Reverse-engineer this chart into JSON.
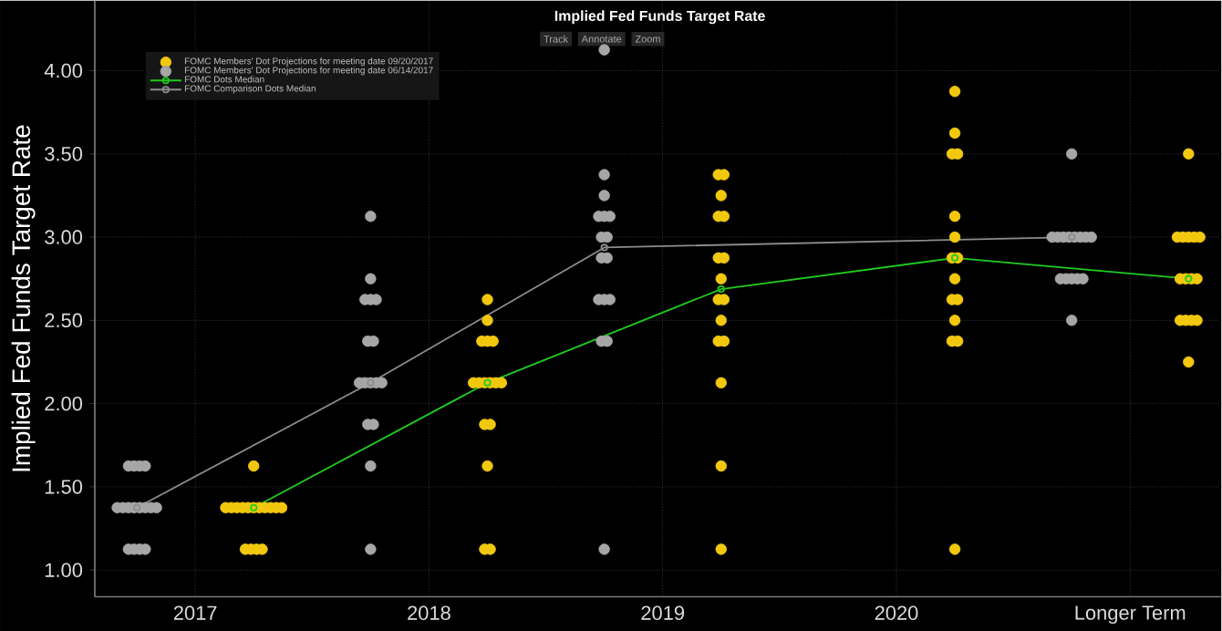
{
  "chart_data": {
    "type": "scatter",
    "title": "Implied Fed Funds Target Rate",
    "ylabel": "Implied Fed Funds Target Rate",
    "annotations": [
      "Track",
      "Annotate",
      "Zoom"
    ],
    "xlim": [
      2016.57,
      2021.39
    ],
    "ylim": [
      0.84,
      4.42
    ],
    "xticks": [
      2017,
      2018,
      2019,
      2020,
      {
        "value": 2021,
        "label": "Longer Term"
      }
    ],
    "yticks": [
      {
        "value": 1,
        "label": "1.00"
      },
      {
        "value": 1.5,
        "label": "1.50"
      },
      {
        "value": 2,
        "label": "2.00"
      },
      {
        "value": 2.5,
        "label": "2.50"
      },
      {
        "value": 3,
        "label": "3.00"
      },
      {
        "value": 3.5,
        "label": "3.50"
      },
      {
        "value": 4,
        "label": "4.00"
      }
    ],
    "grid": true,
    "legend": "top left",
    "marker": "circle",
    "series": [
      {
        "name": "FOMC Members' Dot Projections for meeting date 09/20/2017",
        "color": "#f2c80f",
        "x": [
          2017.25,
          2017.13,
          2017.154,
          2017.178,
          2017.202,
          2017.226,
          2017.25,
          2017.274,
          2017.298,
          2017.322,
          2017.346,
          2017.37,
          2017.214,
          2017.238,
          2017.262,
          2017.286,
          2018.25,
          2018.25,
          2018.226,
          2018.25,
          2018.274,
          2018.19,
          2018.214,
          2018.238,
          2018.262,
          2018.286,
          2018.31,
          2018.238,
          2018.262,
          2018.25,
          2018.238,
          2018.262,
          2019.238,
          2019.262,
          2019.25,
          2019.238,
          2019.262,
          2019.238,
          2019.262,
          2019.25,
          2019.238,
          2019.262,
          2019.25,
          2019.238,
          2019.262,
          2019.25,
          2019.25,
          2019.25,
          2020.25,
          2020.25,
          2020.238,
          2020.262,
          2020.25,
          2020.25,
          2020.238,
          2020.262,
          2020.25,
          2020.238,
          2020.262,
          2020.25,
          2020.238,
          2020.262,
          2020.25,
          2021.25,
          2021.202,
          2021.226,
          2021.25,
          2021.274,
          2021.298,
          2021.214,
          2021.238,
          2021.262,
          2021.286,
          2021.214,
          2021.238,
          2021.262,
          2021.286,
          2021.25
        ],
        "values": [
          1.625,
          1.375,
          1.375,
          1.375,
          1.375,
          1.375,
          1.375,
          1.375,
          1.375,
          1.375,
          1.375,
          1.375,
          1.125,
          1.125,
          1.125,
          1.125,
          2.625,
          2.5,
          2.375,
          2.375,
          2.375,
          2.125,
          2.125,
          2.125,
          2.125,
          2.125,
          2.125,
          1.875,
          1.875,
          1.625,
          1.125,
          1.125,
          3.375,
          3.375,
          3.25,
          3.125,
          3.125,
          2.875,
          2.875,
          2.75,
          2.625,
          2.625,
          2.5,
          2.375,
          2.375,
          2.125,
          1.625,
          1.125,
          3.875,
          3.625,
          3.5,
          3.5,
          3.125,
          3.0,
          2.875,
          2.875,
          2.75,
          2.625,
          2.625,
          2.5,
          2.375,
          2.375,
          1.125,
          3.5,
          3.0,
          3.0,
          3.0,
          3.0,
          3.0,
          2.75,
          2.75,
          2.75,
          2.75,
          2.5,
          2.5,
          2.5,
          2.5,
          2.25
        ]
      },
      {
        "name": "FOMC Members' Dot Projections for meeting date 06/14/2017",
        "color": "#a6a6a6",
        "x": [
          2016.714,
          2016.738,
          2016.762,
          2016.786,
          2016.666,
          2016.69,
          2016.714,
          2016.738,
          2016.762,
          2016.786,
          2016.81,
          2016.834,
          2016.714,
          2016.738,
          2016.762,
          2016.786,
          2017.75,
          2017.75,
          2017.726,
          2017.75,
          2017.774,
          2017.738,
          2017.762,
          2017.702,
          2017.726,
          2017.75,
          2017.774,
          2017.798,
          2017.738,
          2017.762,
          2017.75,
          2017.75,
          2018.75,
          2018.75,
          2018.75,
          2018.726,
          2018.75,
          2018.774,
          2018.738,
          2018.762,
          2018.738,
          2018.762,
          2018.726,
          2018.75,
          2018.774,
          2018.738,
          2018.762,
          2018.75,
          2020.75,
          2020.666,
          2020.69,
          2020.714,
          2020.738,
          2020.762,
          2020.786,
          2020.81,
          2020.834,
          2020.702,
          2020.726,
          2020.75,
          2020.774,
          2020.798,
          2020.75
        ],
        "values": [
          1.625,
          1.625,
          1.625,
          1.625,
          1.375,
          1.375,
          1.375,
          1.375,
          1.375,
          1.375,
          1.375,
          1.375,
          1.125,
          1.125,
          1.125,
          1.125,
          3.125,
          2.75,
          2.625,
          2.625,
          2.625,
          2.375,
          2.375,
          2.125,
          2.125,
          2.125,
          2.125,
          2.125,
          1.875,
          1.875,
          1.625,
          1.125,
          4.125,
          3.375,
          3.25,
          3.125,
          3.125,
          3.125,
          3.0,
          3.0,
          2.875,
          2.875,
          2.625,
          2.625,
          2.625,
          2.375,
          2.375,
          1.125,
          3.5,
          3.0,
          3.0,
          3.0,
          3.0,
          3.0,
          3.0,
          3.0,
          3.0,
          2.75,
          2.75,
          2.75,
          2.75,
          2.75,
          2.5
        ]
      },
      {
        "name": "FOMC Dots Median",
        "type": "line",
        "color": "#1fcc1f",
        "x": [
          2017.25,
          2018.25,
          2019.25,
          2020.25,
          2021.25
        ],
        "values": [
          1.375,
          2.125,
          2.6875,
          2.875,
          2.75
        ]
      },
      {
        "name": "FOMC Comparison Dots Median",
        "type": "line",
        "color": "#8c8c8c",
        "x": [
          2016.75,
          2017.75,
          2018.75,
          2020.75
        ],
        "values": [
          1.375,
          2.125,
          2.9375,
          3.0
        ]
      }
    ]
  }
}
